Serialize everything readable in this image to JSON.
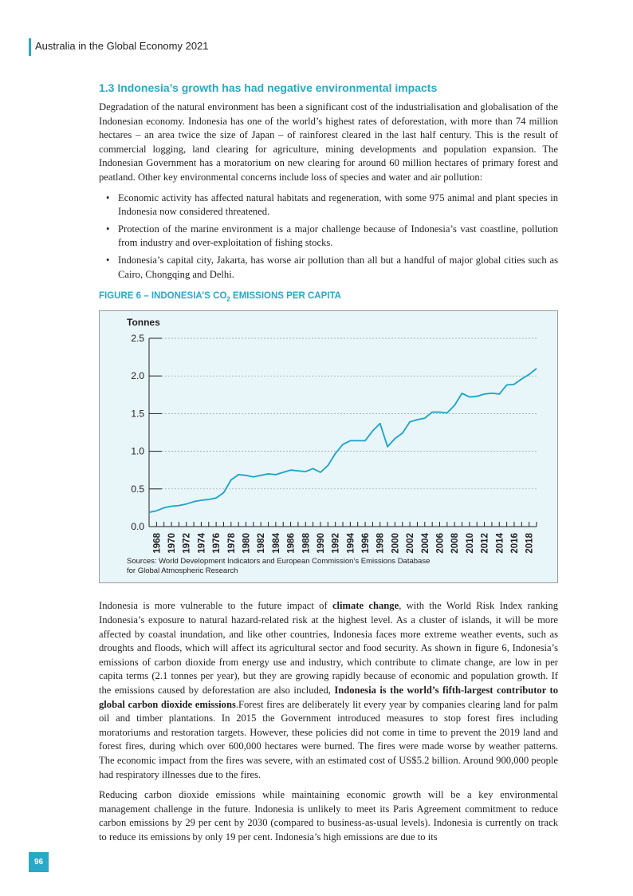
{
  "header": {
    "title": "Australia in the Global Economy 2021"
  },
  "section": {
    "heading": "1.3 Indonesia’s growth has had negative environmental impacts",
    "intro": "Degradation of the natural environment has been a significant cost of the industrialisation and globalisation of the Indonesian economy. Indonesia has one of the world’s highest rates of deforestation, with more than 74 million hectares – an area twice the size of Japan – of rainforest cleared in the last half century. This is the result of commercial logging, land clearing for agriculture, mining developments and population expansion. The Indonesian Government has a moratorium on new clearing for around 60 million hectares of primary forest and peatland. Other key environmental concerns include loss of species and water and air pollution:",
    "bullets": [
      "Economic activity has affected natural habitats and regeneration, with some 975 animal and plant species in Indonesia now considered threatened.",
      "Protection of the marine environment is a major challenge because of Indonesia’s vast coastline, pollution from industry and over-exploitation of fishing stocks.",
      "Indonesia’s capital city, Jakarta, has worse air pollution than all but a handful of major global cities such as Cairo, Chongqing and Delhi."
    ]
  },
  "figure": {
    "caption_prefix": "FIGURE 6 – INDONESIA’S CO",
    "caption_sub": "2",
    "caption_suffix": " EMISSIONS PER CAPITA",
    "sources_line1": "Sources: World Development Indicators and European Commission’s Emissions Database",
    "sources_line2": "for Global Atmospheric Research"
  },
  "chart_data": {
    "type": "line",
    "ylabel": "Tonnes",
    "ylim": [
      0,
      2.5
    ],
    "yticks": [
      "0.0",
      "0.5",
      "1.0",
      "1.5",
      "2.0",
      "2.5"
    ],
    "xlim": [
      1967,
      2019
    ],
    "xticks": [
      "1968",
      "1970",
      "1972",
      "1974",
      "1976",
      "1978",
      "1980",
      "1982",
      "1984",
      "1986",
      "1988",
      "1990",
      "1992",
      "1994",
      "1996",
      "1998",
      "2000",
      "2002",
      "2004",
      "2006",
      "2008",
      "2010",
      "2012",
      "2014",
      "2016",
      "2018"
    ],
    "grid": true,
    "color": "#1aa3c8",
    "series": [
      {
        "x": [
          1967,
          1968,
          1969,
          1970,
          1971,
          1972,
          1973,
          1974,
          1975,
          1976,
          1977,
          1978,
          1979,
          1980,
          1981,
          1982,
          1983,
          1984,
          1985,
          1986,
          1987,
          1988,
          1989,
          1990,
          1991,
          1992,
          1993,
          1994,
          1995,
          1996,
          1997,
          1998,
          1999,
          2000,
          2001,
          2002,
          2003,
          2004,
          2005,
          2006,
          2007,
          2008,
          2009,
          2010,
          2011,
          2012,
          2013,
          2014,
          2015,
          2016,
          2017,
          2018,
          2019
        ],
        "values": [
          0.19,
          0.21,
          0.25,
          0.27,
          0.28,
          0.3,
          0.33,
          0.35,
          0.36,
          0.38,
          0.45,
          0.62,
          0.69,
          0.68,
          0.66,
          0.68,
          0.7,
          0.69,
          0.72,
          0.75,
          0.74,
          0.73,
          0.77,
          0.72,
          0.81,
          0.97,
          1.09,
          1.14,
          1.14,
          1.14,
          1.27,
          1.37,
          1.06,
          1.17,
          1.24,
          1.39,
          1.42,
          1.44,
          1.52,
          1.52,
          1.51,
          1.61,
          1.77,
          1.72,
          1.73,
          1.76,
          1.77,
          1.76,
          1.88,
          1.89,
          1.96,
          2.02,
          2.1
        ]
      }
    ]
  },
  "body": {
    "p1_a": "Indonesia is more vulnerable to the future impact of ",
    "p1_b": "climate change",
    "p1_c": ", with the World Risk Index ranking Indonesia’s exposure to natural hazard-related risk at the highest level. As a cluster of islands, it will be more affected by coastal inundation, and like other countries, Indonesia faces more extreme weather events, such as droughts and floods, which will affect its agricultural sector and food security. As shown in figure 6, Indonesia’s emissions of carbon dioxide from energy use and industry, which contribute to climate change, are low in per capita terms (2.1 tonnes per year), but they are growing rapidly because of economic and population growth. If the emissions caused by deforestation are also included, ",
    "p1_d": "Indonesia is the world’s fifth-largest contributor to global carbon dioxide emissions",
    "p1_e": ".Forest fires are deliberately lit every year by companies clearing land for palm oil and timber plantations. In 2015 the Government introduced measures to stop forest fires including moratoriums and restoration targets. However, these policies did not come in time to prevent the 2019 land and forest fires, during which over 600,000 hectares were burned. The fires were made worse by weather patterns. The economic impact from the fires was severe, with an estimated cost of US$5.2 billion. Around 900,000 people had respiratory illnesses due to the fires.",
    "p2": "Reducing carbon dioxide emissions while maintaining economic growth will be a key environmental management challenge in the future. Indonesia is unlikely to meet its Paris Agreement commitment to reduce carbon emissions by 29 per cent by 2030 (compared to business-as-usual levels). Indonesia is currently on track to reduce its emissions by only 19 per cent. Indonesia’s high emissions are due to its"
  },
  "page_number": "96"
}
